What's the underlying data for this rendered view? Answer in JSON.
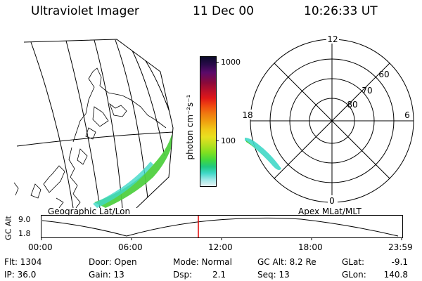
{
  "header": {
    "instrument": "Ultraviolet Imager",
    "date": "11 Dec 00",
    "time": "10:26:33 UT"
  },
  "colorbar": {
    "unit_label": "photon cm⁻²s⁻¹",
    "tick_labels": [
      "1000",
      "100"
    ],
    "colors": [
      "#0a0a2a",
      "#2a0a4a",
      "#5a0a6a",
      "#8a0a3a",
      "#b8102a",
      "#e01818",
      "#f04a10",
      "#f07a10",
      "#f0a010",
      "#f0c818",
      "#e8e020",
      "#b8e020",
      "#80e020",
      "#40d840",
      "#20c880",
      "#40d8c8",
      "#a0e8e8",
      "#e8f4f4"
    ]
  },
  "left_panel": {
    "caption": "Geographic Lat/Lon",
    "auroral_color": "#50d040"
  },
  "right_panel": {
    "caption": "Apex MLat/MLT",
    "mlt_labels": {
      "top": "12",
      "left": "18",
      "right": "6",
      "bottom": "0"
    },
    "mlat_labels": [
      "60",
      "70",
      "80"
    ]
  },
  "timeline": {
    "ylabel": "GC Alt",
    "y_ticks": [
      "9.0",
      "1.8"
    ],
    "x_ticks": [
      "00:00",
      "06:00",
      "12:00",
      "18:00",
      "23:59"
    ],
    "current_marker_color": "#e00000"
  },
  "status": {
    "flt": "Flt: 1304",
    "ip": "IP: 36.0",
    "door": "Door: Open",
    "gain": "Gain: 13",
    "mode": "Mode: Normal",
    "dsp_label": "Dsp:",
    "dsp_value": "2.1",
    "gc_alt": "GC Alt: 8.2 Re",
    "seq": "Seq: 13",
    "glat_label": "GLat:",
    "glat_value": "-9.1",
    "glon_label": "GLon:",
    "glon_value": "140.8"
  }
}
